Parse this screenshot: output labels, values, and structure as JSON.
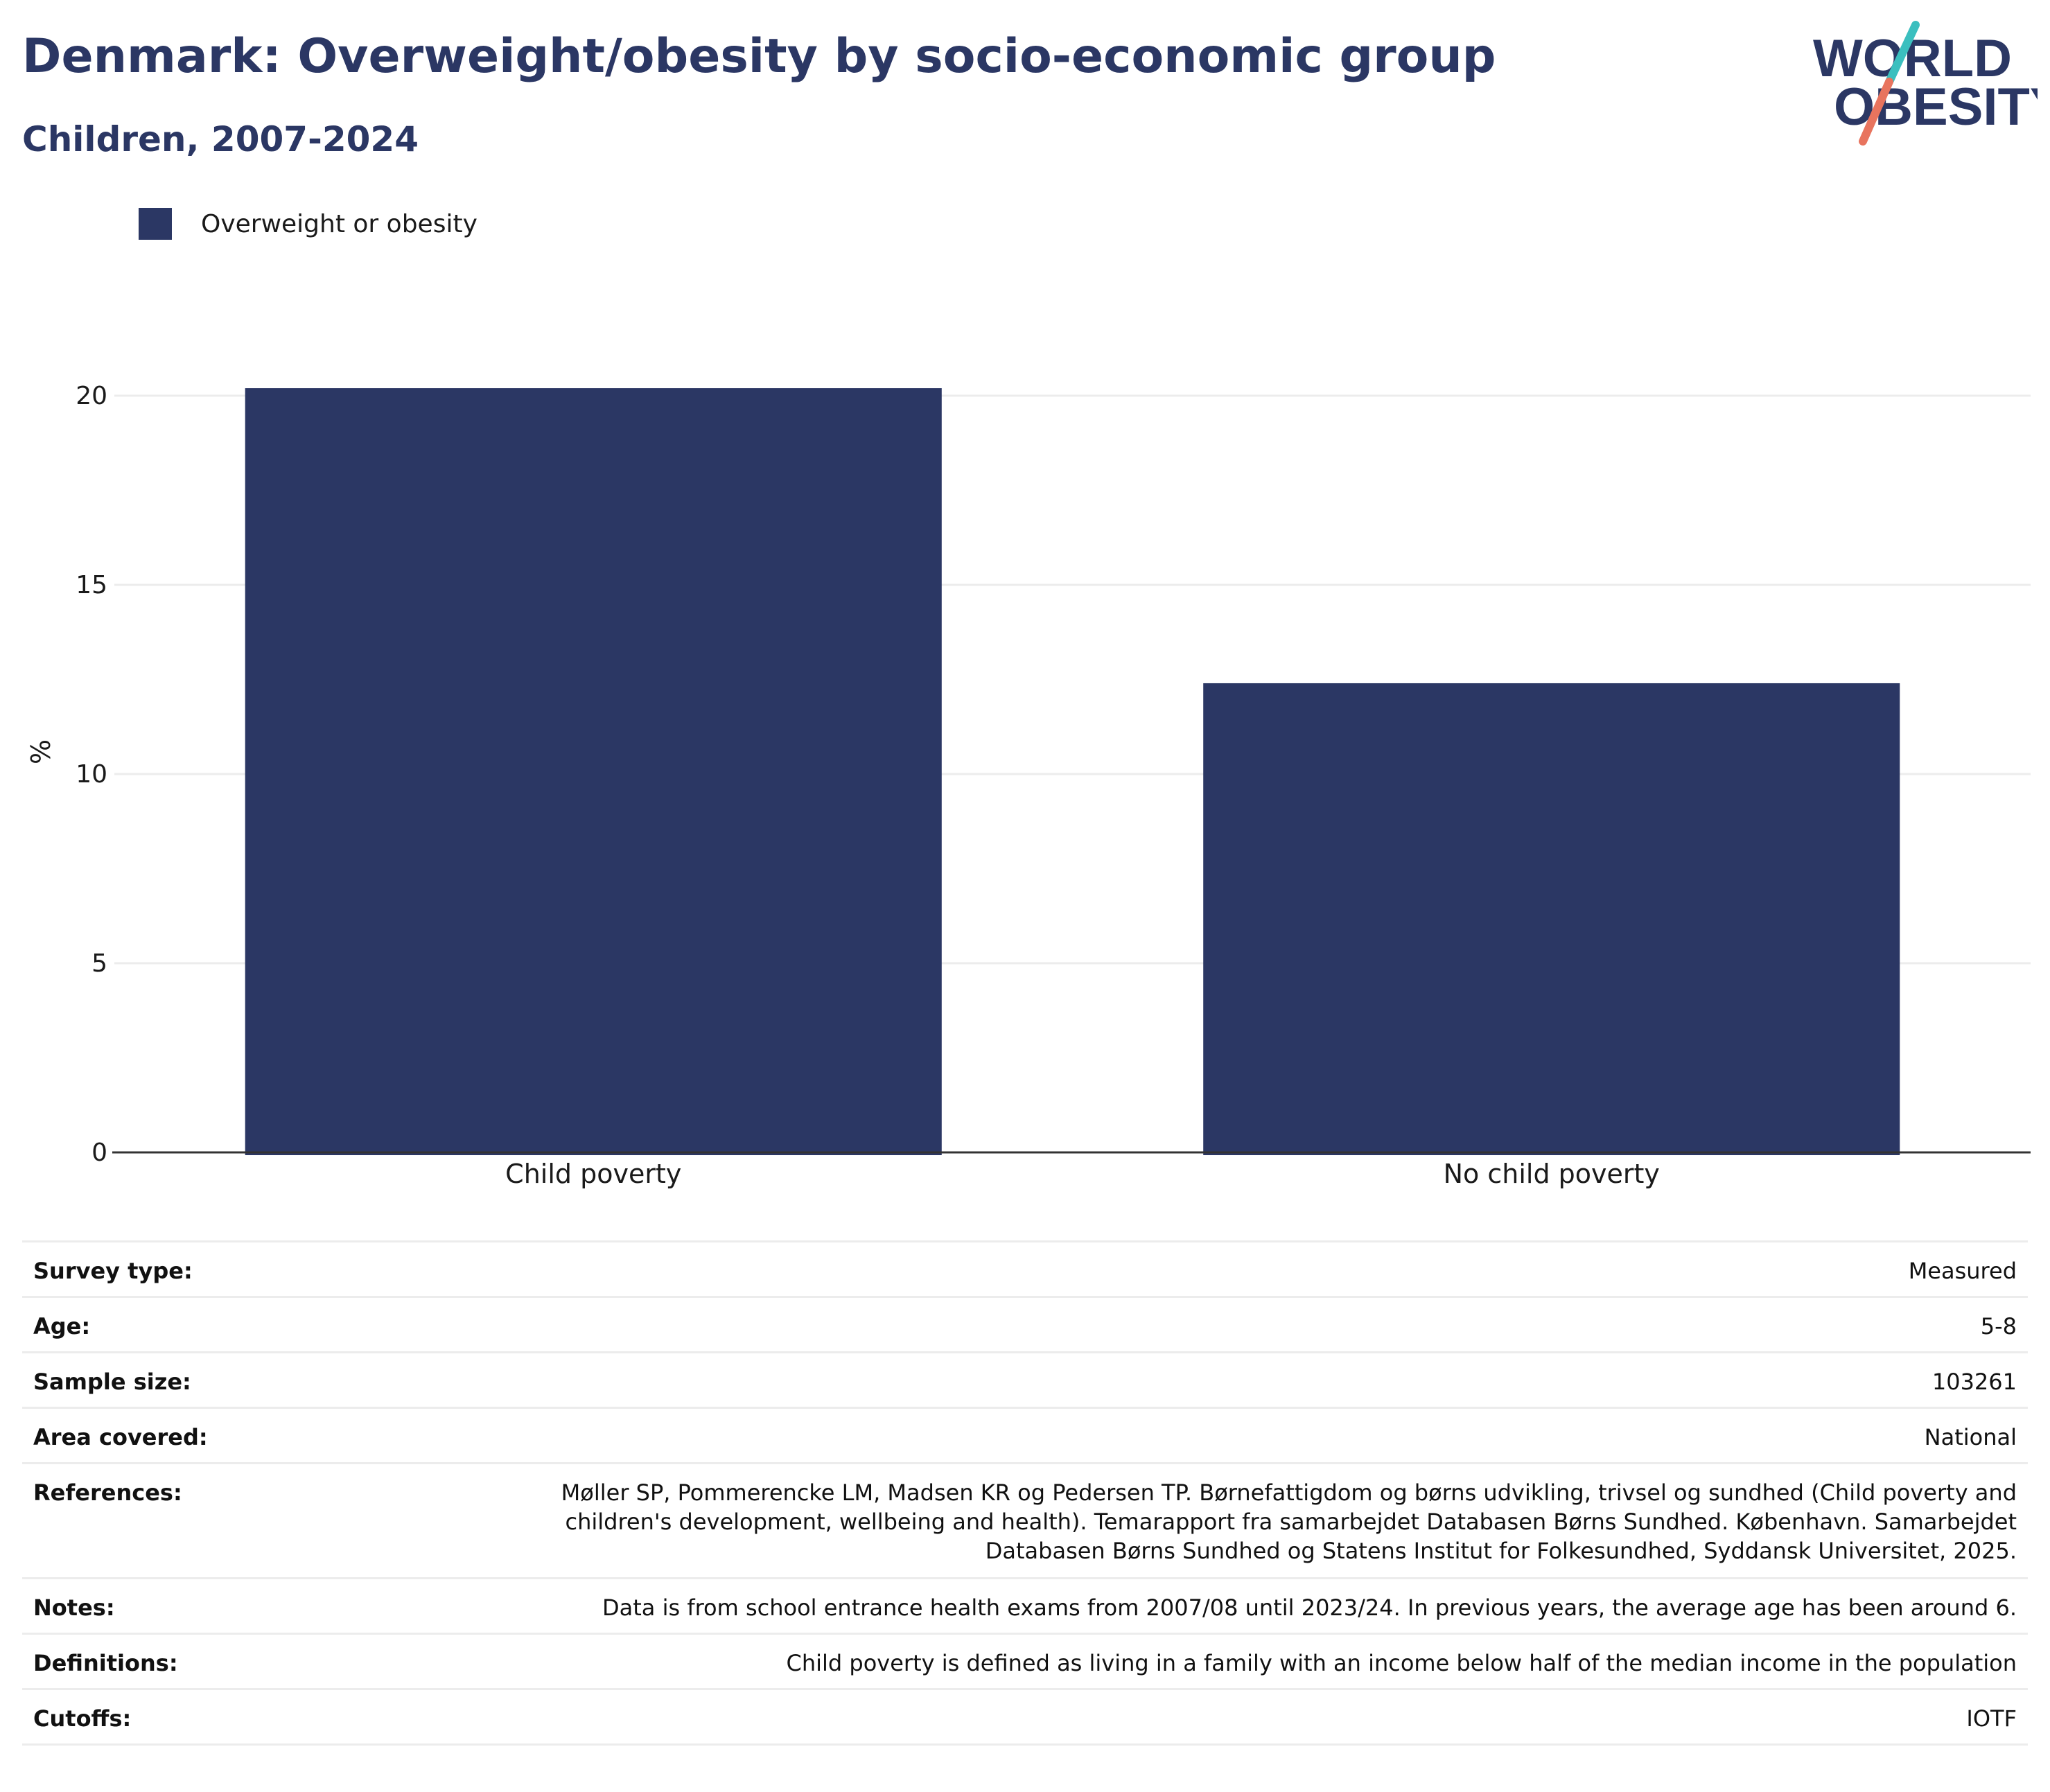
{
  "title": "Denmark: Overweight/obesity by socio-economic group",
  "subtitle": "Children, 2007-2024",
  "logo": {
    "line1": "WORLD",
    "line2": "OBESITY",
    "colors": {
      "text": "#2b3764",
      "slash_top": "#3bbfbf",
      "slash_bottom": "#e8745e"
    }
  },
  "colors": {
    "bar": "#2b3764",
    "grid": "#ececec",
    "axis": "#333333"
  },
  "chart_data": {
    "type": "bar",
    "categories": [
      "Child poverty",
      "No child poverty"
    ],
    "series": [
      {
        "name": "Overweight or obesity",
        "values": [
          20.2,
          12.4
        ]
      }
    ],
    "ylabel": "%",
    "ylim": [
      0,
      20
    ],
    "yticks": [
      "0",
      "5",
      "10",
      "15",
      "20"
    ],
    "grid": true,
    "legend": "top-left"
  },
  "info": [
    {
      "key": "Survey type:",
      "value": "Measured"
    },
    {
      "key": "Age:",
      "value": "5-8"
    },
    {
      "key": "Sample size:",
      "value": "103261"
    },
    {
      "key": "Area covered:",
      "value": "National"
    },
    {
      "key": "References:",
      "value_lines": [
        "Møller SP, Pommerencke LM, Madsen KR og Pedersen TP. Børnefattigdom og børns udvikling, trivsel og sundhed (Child poverty and",
        "children's development, wellbeing and health). Temarapport fra samarbejdet Databasen Børns Sundhed. København. Samarbejdet",
        "Databasen Børns Sundhed og Statens Institut for Folkesundhed, Syddansk Universitet, 2025."
      ]
    },
    {
      "key": "Notes:",
      "value": "Data is from school entrance health exams from 2007/08 until 2023/24. In previous years, the average age has been around 6."
    },
    {
      "key": "Definitions:",
      "value": "Child poverty is defined as living in a family with an income below half of the median income in the population"
    },
    {
      "key": "Cutoffs:",
      "value": "IOTF"
    }
  ]
}
